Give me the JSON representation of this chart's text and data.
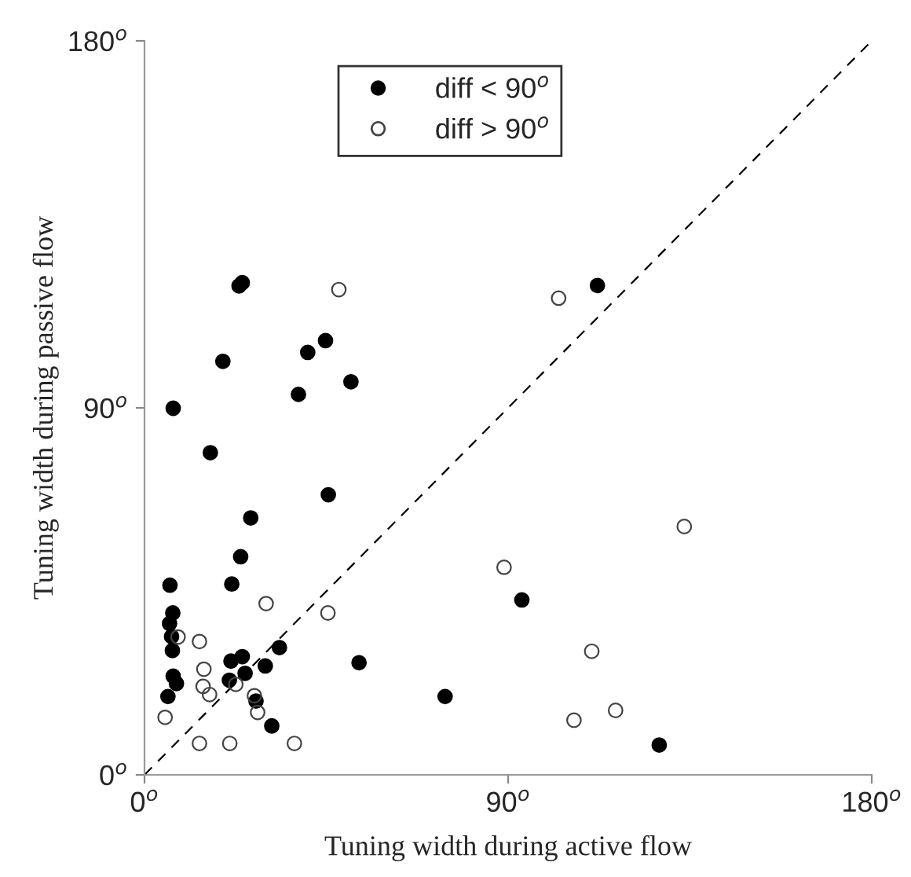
{
  "chart_data": {
    "type": "scatter",
    "xlabel": "Tuning width during active flow",
    "ylabel": "Tuning width during passive flow",
    "xlim": [
      0,
      180
    ],
    "ylim": [
      0,
      180
    ],
    "xticks": [
      {
        "value": 0,
        "label": "0$^{o}$"
      },
      {
        "value": 90,
        "label": "90$^{o}$"
      },
      {
        "value": 180,
        "label": "180$^{o}$"
      }
    ],
    "yticks": [
      {
        "value": 0,
        "label": "0$^{o}$"
      },
      {
        "value": 90,
        "label": "90$^{o}$"
      },
      {
        "value": 180,
        "label": "180$^{o}$"
      }
    ],
    "legend": "top",
    "grid": false,
    "series": [
      {
        "name": "diff < 90$^{o}$",
        "color": "#000000",
        "marker": "circle",
        "x": [
          23.4,
          24.2,
          44.8,
          40.4,
          19.4,
          51.1,
          38.1,
          7.1,
          16.3,
          45.5,
          26.3,
          23.8,
          6.3,
          21.6,
          7.0,
          6.2,
          6.7,
          6.9,
          33.4,
          21.4,
          24.2,
          29.9,
          24.9,
          21.0,
          7.1,
          7.9,
          5.8,
          27.6,
          31.5,
          53.1,
          74.4,
          112.1,
          93.4,
          127.4
        ],
        "values": [
          119.9,
          120.7,
          106.5,
          103.6,
          101.4,
          96.4,
          93.3,
          89.9,
          79.0,
          68.7,
          63.0,
          53.5,
          46.5,
          46.8,
          39.7,
          37.1,
          33.9,
          30.5,
          31.2,
          27.9,
          29.0,
          26.7,
          24.9,
          23.2,
          24.2,
          22.4,
          19.2,
          18.1,
          12.0,
          27.5,
          19.2,
          120.0,
          42.9,
          7.3
        ]
      },
      {
        "name": "diff > 90$^{o}$",
        "color": "#444444",
        "marker": "circle",
        "x": [
          48.1,
          30.1,
          45.4,
          8.3,
          13.6,
          14.7,
          14.5,
          16.1,
          22.6,
          27.2,
          28.0,
          5.1,
          13.6,
          21.1,
          37.1,
          102.5,
          133.6,
          89.0,
          110.7,
          116.6,
          106.3
        ],
        "values": [
          119.0,
          42.0,
          39.7,
          33.8,
          32.7,
          25.9,
          21.7,
          19.7,
          22.2,
          19.4,
          15.3,
          14.1,
          7.7,
          7.7,
          7.7,
          116.9,
          60.9,
          50.9,
          30.3,
          15.8,
          13.4
        ]
      },
      {
        "type": "line",
        "color": "#000000",
        "line_style": "dashed",
        "x": [
          0,
          180
        ],
        "values": [
          0,
          180
        ]
      }
    ]
  }
}
